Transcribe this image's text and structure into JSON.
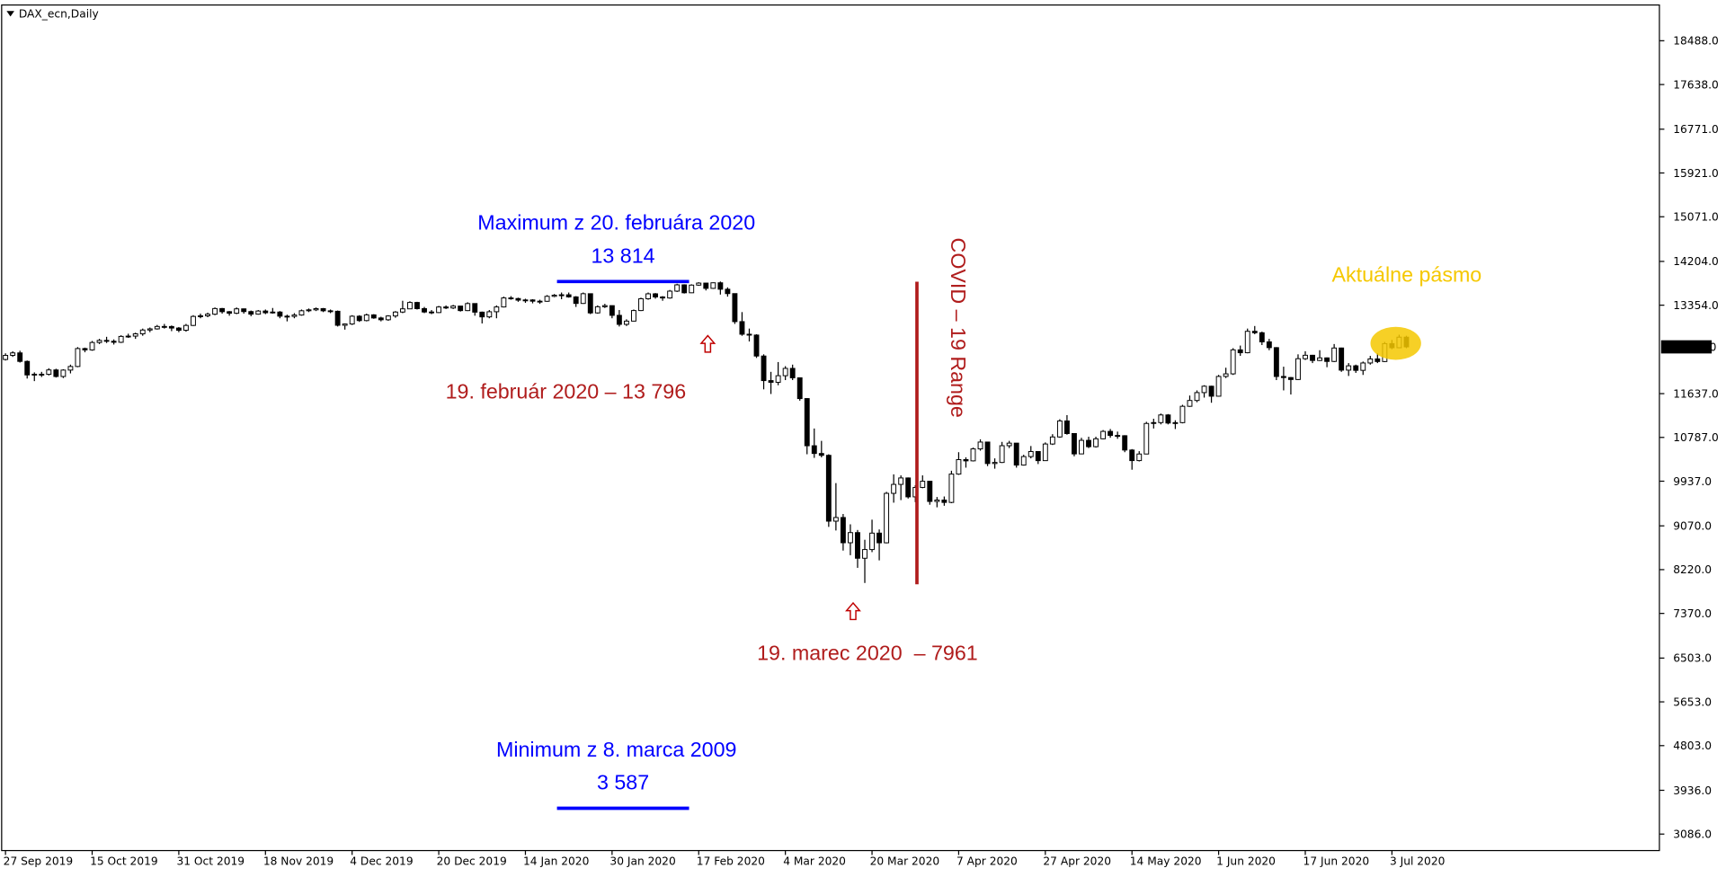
{
  "chart_data": {
    "type": "candlestick",
    "title": "DAX_ecn,Daily",
    "up_color": "#ffffff",
    "down_color": "#000000",
    "wick_color": "#000000",
    "ylim": [
      2766,
      19193
    ],
    "yticks": [
      {
        "value": 18488,
        "label": "18488.0"
      },
      {
        "value": 17638,
        "label": "17638.0"
      },
      {
        "value": 16771,
        "label": "16771.0"
      },
      {
        "value": 15921,
        "label": "15921.0"
      },
      {
        "value": 15071,
        "label": "15071.0"
      },
      {
        "value": 14204,
        "label": "14204.0"
      },
      {
        "value": 13354,
        "label": "13354.0"
      },
      {
        "value": 11637,
        "label": "11637.0"
      },
      {
        "value": 10787,
        "label": "10787.0"
      },
      {
        "value": 9937,
        "label": "9937.0"
      },
      {
        "value": 9070,
        "label": "9070.0"
      },
      {
        "value": 8220,
        "label": "8220.0"
      },
      {
        "value": 7370,
        "label": "7370.0"
      },
      {
        "value": 6503,
        "label": "6503.0"
      },
      {
        "value": 5653,
        "label": "5653.0"
      },
      {
        "value": 4803,
        "label": "4803.0"
      },
      {
        "value": 3936,
        "label": "3936.0"
      },
      {
        "value": 3086,
        "label": "3086.0"
      }
    ],
    "current_price": {
      "value": 12545,
      "label": "12545.0"
    },
    "categories": [
      "27 Sep 2019",
      null,
      null,
      null,
      null,
      null,
      null,
      null,
      null,
      null,
      null,
      null,
      "15 Oct 2019",
      null,
      null,
      null,
      null,
      null,
      null,
      null,
      null,
      null,
      null,
      null,
      "31 Oct 2019",
      null,
      null,
      null,
      null,
      null,
      null,
      null,
      null,
      null,
      null,
      null,
      "18 Nov 2019",
      null,
      null,
      null,
      null,
      null,
      null,
      null,
      null,
      null,
      null,
      null,
      "4 Dec 2019",
      null,
      null,
      null,
      null,
      null,
      null,
      null,
      null,
      null,
      null,
      null,
      "20 Dec 2019",
      null,
      null,
      null,
      null,
      null,
      null,
      null,
      null,
      null,
      null,
      null,
      "14 Jan 2020",
      null,
      null,
      null,
      null,
      null,
      null,
      null,
      null,
      null,
      null,
      null,
      "30 Jan 2020",
      null,
      null,
      null,
      null,
      null,
      null,
      null,
      null,
      null,
      null,
      null,
      "17 Feb 2020",
      null,
      null,
      null,
      null,
      null,
      null,
      null,
      null,
      null,
      null,
      null,
      "4 Mar 2020",
      null,
      null,
      null,
      null,
      null,
      null,
      null,
      null,
      null,
      null,
      null,
      "20 Mar 2020",
      null,
      null,
      null,
      null,
      null,
      null,
      null,
      null,
      null,
      null,
      null,
      "7 Apr 2020",
      null,
      null,
      null,
      null,
      null,
      null,
      null,
      null,
      null,
      null,
      null,
      "27 Apr 2020",
      null,
      null,
      null,
      null,
      null,
      null,
      null,
      null,
      null,
      null,
      null,
      "14 May 2020",
      null,
      null,
      null,
      null,
      null,
      null,
      null,
      null,
      null,
      null,
      null,
      "1 Jun 2020",
      null,
      null,
      null,
      null,
      null,
      null,
      null,
      null,
      null,
      null,
      null,
      "17 Jun 2020",
      null,
      null,
      null,
      null,
      null,
      null,
      null,
      null,
      null,
      null,
      null,
      "3 Jul 2020",
      null,
      null
    ],
    "ohlc": [
      [
        12300,
        12420,
        12280,
        12380
      ],
      [
        12380,
        12460,
        12350,
        12428
      ],
      [
        12428,
        12470,
        12240,
        12263
      ],
      [
        12263,
        12280,
        11930,
        12000
      ],
      [
        12000,
        12050,
        11880,
        12014
      ],
      [
        12014,
        12060,
        11960,
        12012
      ],
      [
        12012,
        12130,
        11990,
        12097
      ],
      [
        12097,
        12120,
        11950,
        11970
      ],
      [
        11970,
        12110,
        11940,
        12094
      ],
      [
        12094,
        12200,
        12030,
        12164
      ],
      [
        12164,
        12540,
        12150,
        12512
      ],
      [
        12512,
        12530,
        12440,
        12486
      ],
      [
        12486,
        12660,
        12470,
        12630
      ],
      [
        12630,
        12700,
        12600,
        12670
      ],
      [
        12670,
        12740,
        12620,
        12654
      ],
      [
        12654,
        12690,
        12590,
        12634
      ],
      [
        12634,
        12770,
        12620,
        12748
      ],
      [
        12748,
        12800,
        12720,
        12754
      ],
      [
        12754,
        12820,
        12700,
        12798
      ],
      [
        12798,
        12900,
        12760,
        12872
      ],
      [
        12872,
        12920,
        12830,
        12894
      ],
      [
        12894,
        12970,
        12880,
        12941
      ],
      [
        12941,
        12990,
        12900,
        12940
      ],
      [
        12940,
        12960,
        12850,
        12910
      ],
      [
        12910,
        12930,
        12830,
        12867
      ],
      [
        12867,
        12990,
        12840,
        12961
      ],
      [
        12961,
        13160,
        12950,
        13136
      ],
      [
        13136,
        13190,
        13100,
        13148
      ],
      [
        13148,
        13210,
        13120,
        13179
      ],
      [
        13179,
        13310,
        13160,
        13289
      ],
      [
        13289,
        13300,
        13190,
        13228
      ],
      [
        13228,
        13240,
        13150,
        13198
      ],
      [
        13198,
        13310,
        13180,
        13283
      ],
      [
        13283,
        13290,
        13190,
        13230
      ],
      [
        13230,
        13250,
        13140,
        13180
      ],
      [
        13180,
        13260,
        13170,
        13241
      ],
      [
        13241,
        13270,
        13180,
        13207
      ],
      [
        13207,
        13300,
        13190,
        13221
      ],
      [
        13221,
        13240,
        13100,
        13141
      ],
      [
        13141,
        13170,
        13040,
        13137
      ],
      [
        13137,
        13200,
        13100,
        13163
      ],
      [
        13163,
        13270,
        13150,
        13246
      ],
      [
        13246,
        13290,
        13220,
        13264
      ],
      [
        13264,
        13310,
        13240,
        13287
      ],
      [
        13287,
        13300,
        13220,
        13245
      ],
      [
        13245,
        13270,
        13200,
        13236
      ],
      [
        13236,
        13250,
        12940,
        12964
      ],
      [
        12964,
        13000,
        12880,
        12989
      ],
      [
        12989,
        13160,
        12970,
        13140
      ],
      [
        13140,
        13160,
        13030,
        13055
      ],
      [
        13055,
        13190,
        13040,
        13166
      ],
      [
        13166,
        13180,
        13090,
        13106
      ],
      [
        13106,
        13130,
        13040,
        13071
      ],
      [
        13071,
        13160,
        13050,
        13145
      ],
      [
        13145,
        13240,
        13110,
        13221
      ],
      [
        13221,
        13440,
        13200,
        13283
      ],
      [
        13283,
        13430,
        13280,
        13407
      ],
      [
        13407,
        13420,
        13270,
        13287
      ],
      [
        13287,
        13320,
        13200,
        13222
      ],
      [
        13222,
        13260,
        13180,
        13211
      ],
      [
        13211,
        13340,
        13200,
        13319
      ],
      [
        13319,
        13350,
        13280,
        13300
      ],
      [
        13300,
        13360,
        13280,
        13337
      ],
      [
        13337,
        13340,
        13230,
        13249
      ],
      [
        13249,
        13410,
        13240,
        13386
      ],
      [
        13386,
        13390,
        13150,
        13219
      ],
      [
        13219,
        13230,
        13000,
        13127
      ],
      [
        13127,
        13260,
        13100,
        13227
      ],
      [
        13227,
        13350,
        13100,
        13320
      ],
      [
        13320,
        13520,
        13310,
        13495
      ],
      [
        13495,
        13530,
        13460,
        13483
      ],
      [
        13483,
        13500,
        13420,
        13452
      ],
      [
        13452,
        13480,
        13400,
        13456
      ],
      [
        13456,
        13470,
        13390,
        13432
      ],
      [
        13432,
        13460,
        13380,
        13430
      ],
      [
        13430,
        13550,
        13420,
        13526
      ],
      [
        13526,
        13570,
        13510,
        13548
      ],
      [
        13548,
        13600,
        13470,
        13556
      ],
      [
        13556,
        13600,
        13500,
        13515
      ],
      [
        13515,
        13530,
        13320,
        13388
      ],
      [
        13388,
        13600,
        13380,
        13577
      ],
      [
        13577,
        13580,
        13180,
        13204
      ],
      [
        13204,
        13350,
        13190,
        13324
      ],
      [
        13324,
        13380,
        13300,
        13345
      ],
      [
        13345,
        13350,
        13100,
        13157
      ],
      [
        13157,
        13260,
        12940,
        12982
      ],
      [
        12982,
        13080,
        12950,
        13045
      ],
      [
        13045,
        13270,
        13040,
        13250
      ],
      [
        13250,
        13500,
        13240,
        13479
      ],
      [
        13479,
        13600,
        13460,
        13575
      ],
      [
        13575,
        13590,
        13480,
        13514
      ],
      [
        13514,
        13530,
        13440,
        13494
      ],
      [
        13494,
        13650,
        13480,
        13627
      ],
      [
        13627,
        13770,
        13610,
        13749
      ],
      [
        13749,
        13760,
        13580,
        13595
      ],
      [
        13595,
        13760,
        13590,
        13744
      ],
      [
        13744,
        13800,
        13730,
        13783
      ],
      [
        13783,
        13790,
        13640,
        13681
      ],
      [
        13681,
        13796,
        13670,
        13789
      ],
      [
        13789,
        13814,
        13560,
        13664
      ],
      [
        13664,
        13700,
        13520,
        13579
      ],
      [
        13579,
        13580,
        12990,
        13035
      ],
      [
        13035,
        13220,
        12760,
        12790
      ],
      [
        12790,
        12900,
        12650,
        12774
      ],
      [
        12774,
        12790,
        12330,
        12367
      ],
      [
        12367,
        12400,
        11720,
        11890
      ],
      [
        11890,
        12060,
        11630,
        11857
      ],
      [
        11857,
        12250,
        11800,
        11985
      ],
      [
        11985,
        12170,
        11900,
        12127
      ],
      [
        12127,
        12200,
        11900,
        11944
      ],
      [
        11944,
        11950,
        11500,
        11541
      ],
      [
        11541,
        11550,
        10460,
        10625
      ],
      [
        10625,
        10960,
        10390,
        10475
      ],
      [
        10475,
        10720,
        10400,
        10439
      ],
      [
        10439,
        10460,
        9050,
        9161
      ],
      [
        9161,
        9900,
        8980,
        9232
      ],
      [
        9232,
        9300,
        8590,
        8742
      ],
      [
        8742,
        9100,
        8500,
        8939
      ],
      [
        8939,
        8990,
        8255,
        8441
      ],
      [
        8441,
        8800,
        7961,
        8610
      ],
      [
        8610,
        9190,
        8560,
        8929
      ],
      [
        8929,
        9000,
        8400,
        8741
      ],
      [
        8741,
        9730,
        8730,
        9701
      ],
      [
        9701,
        10070,
        9520,
        9875
      ],
      [
        9875,
        10050,
        9570,
        10000
      ],
      [
        10000,
        10010,
        9600,
        9633
      ],
      [
        9633,
        9860,
        9530,
        9816
      ],
      [
        9816,
        10050,
        9800,
        9936
      ],
      [
        9936,
        9940,
        9480,
        9544
      ],
      [
        9544,
        9630,
        9430,
        9571
      ],
      [
        9571,
        9640,
        9460,
        9525
      ],
      [
        9525,
        10140,
        9510,
        10075
      ],
      [
        10075,
        10500,
        10060,
        10356
      ],
      [
        10356,
        10400,
        10200,
        10332
      ],
      [
        10332,
        10590,
        10320,
        10564
      ],
      [
        10564,
        10750,
        10530,
        10697
      ],
      [
        10697,
        10700,
        10230,
        10280
      ],
      [
        10280,
        10380,
        10180,
        10301
      ],
      [
        10301,
        10700,
        10290,
        10626
      ],
      [
        10626,
        10720,
        10580,
        10676
      ],
      [
        10676,
        10680,
        10200,
        10250
      ],
      [
        10250,
        10450,
        10240,
        10415
      ],
      [
        10415,
        10620,
        10380,
        10513
      ],
      [
        10513,
        10520,
        10270,
        10336
      ],
      [
        10336,
        10690,
        10330,
        10659
      ],
      [
        10659,
        10850,
        10640,
        10796
      ],
      [
        10796,
        11140,
        10780,
        11107
      ],
      [
        11107,
        11220,
        10840,
        10862
      ],
      [
        10862,
        10870,
        10420,
        10467
      ],
      [
        10467,
        10780,
        10460,
        10730
      ],
      [
        10730,
        10800,
        10580,
        10607
      ],
      [
        10607,
        10800,
        10590,
        10760
      ],
      [
        10760,
        10930,
        10750,
        10904
      ],
      [
        10904,
        10950,
        10780,
        10825
      ],
      [
        10825,
        10900,
        10760,
        10820
      ],
      [
        10820,
        10830,
        10500,
        10542
      ],
      [
        10542,
        10560,
        10160,
        10337
      ],
      [
        10337,
        10520,
        10320,
        10465
      ],
      [
        10465,
        11090,
        10460,
        11058
      ],
      [
        11058,
        11150,
        10960,
        11075
      ],
      [
        11075,
        11250,
        11040,
        11223
      ],
      [
        11223,
        11240,
        11040,
        11066
      ],
      [
        11066,
        11120,
        10950,
        11074
      ],
      [
        11074,
        11420,
        11060,
        11391
      ],
      [
        11391,
        11600,
        11380,
        11504
      ],
      [
        11504,
        11700,
        11470,
        11657
      ],
      [
        11657,
        11800,
        11560,
        11781
      ],
      [
        11781,
        11790,
        11460,
        11587
      ],
      [
        11587,
        12000,
        11580,
        11971
      ],
      [
        11971,
        12140,
        11940,
        12021
      ],
      [
        12021,
        12520,
        12000,
        12487
      ],
      [
        12487,
        12570,
        12370,
        12431
      ],
      [
        12431,
        12900,
        12420,
        12847
      ],
      [
        12847,
        12950,
        12790,
        12819
      ],
      [
        12819,
        12840,
        12580,
        12642
      ],
      [
        12642,
        12700,
        12480,
        12530
      ],
      [
        12530,
        12540,
        11900,
        11970
      ],
      [
        11970,
        12160,
        11700,
        11949
      ],
      [
        11949,
        11960,
        11620,
        11911
      ],
      [
        11911,
        12400,
        11900,
        12315
      ],
      [
        12315,
        12460,
        12290,
        12382
      ],
      [
        12382,
        12390,
        12230,
        12281
      ],
      [
        12281,
        12480,
        12270,
        12331
      ],
      [
        12331,
        12340,
        12150,
        12262
      ],
      [
        12262,
        12600,
        12250,
        12523
      ],
      [
        12523,
        12530,
        12060,
        12093
      ],
      [
        12093,
        12230,
        11980,
        12177
      ],
      [
        12177,
        12200,
        12040,
        12089
      ],
      [
        12089,
        12260,
        12000,
        12232
      ],
      [
        12232,
        12370,
        12200,
        12311
      ],
      [
        12311,
        12420,
        12230,
        12260
      ],
      [
        12260,
        12640,
        12250,
        12608
      ],
      [
        12608,
        12680,
        12500,
        12528
      ],
      [
        12528,
        12780,
        12520,
        12733
      ],
      [
        12733,
        12760,
        12520,
        12545
      ]
    ],
    "levels": [
      {
        "title": "Maximum z 20. februára 2020",
        "value": 13814,
        "label": "13 814",
        "color": "#0000ff"
      },
      {
        "title": "Minimum z 8. marca 2009",
        "value": 3587,
        "label": "3 587",
        "color": "#0000ff"
      }
    ],
    "annotations": [
      "19. február 2020 – 13 796",
      "19. marec 2020  – 7961",
      "COVID – 19 Range",
      "Aktuálne pásmo"
    ]
  }
}
